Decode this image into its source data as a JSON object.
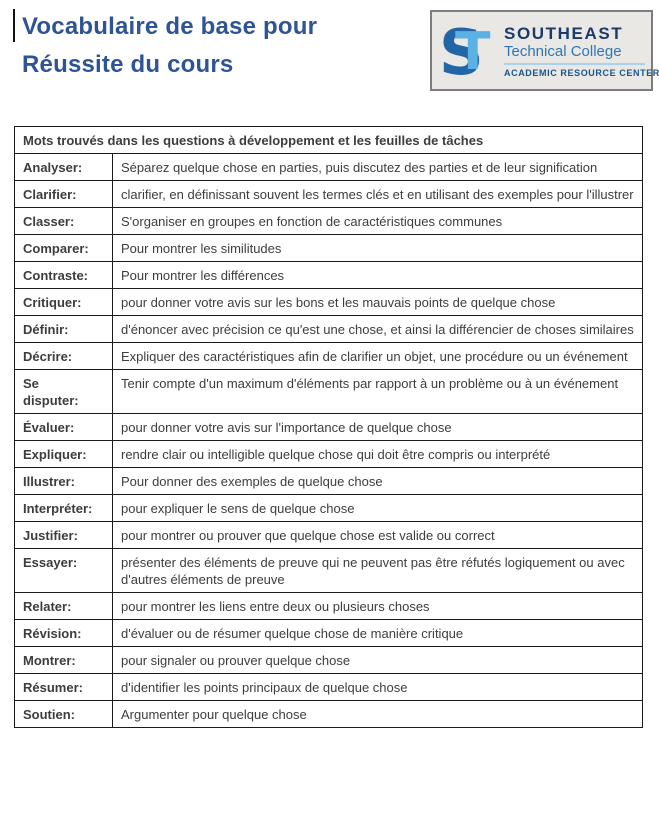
{
  "header": {
    "title_line1": "Vocabulaire de base pour",
    "title_line2": "Réussite du cours"
  },
  "logo": {
    "monogram_s": "S",
    "monogram_t": "T",
    "name_top": "SOUTHEAST",
    "name_bottom": "Technical College",
    "subtitle": "ACADEMIC RESOURCE CENTER"
  },
  "table": {
    "header": "Mots trouvés dans les questions à développement et les feuilles de tâches",
    "rows": [
      {
        "term": "Analyser:",
        "definition": "Séparez quelque chose en parties, puis discutez des parties et de leur signification"
      },
      {
        "term": "Clarifier:",
        "definition": "clarifier, en définissant souvent les termes clés et en utilisant des exemples pour l'illustrer"
      },
      {
        "term": "Classer:",
        "definition": "S'organiser en groupes en fonction de caractéristiques communes"
      },
      {
        "term": "Comparer:",
        "definition": "Pour montrer les similitudes"
      },
      {
        "term": "Contraste:",
        "definition": "Pour montrer les différences"
      },
      {
        "term": "Critiquer:",
        "definition": "pour donner votre avis sur les bons et les mauvais points de quelque chose"
      },
      {
        "term": "Définir:",
        "definition": "d'énoncer avec précision ce qu'est une chose, et ainsi la différencier de choses similaires"
      },
      {
        "term": "Décrire:",
        "definition": "Expliquer des caractéristiques afin de clarifier un objet, une procédure ou un événement"
      },
      {
        "term": "Se\ndisputer:",
        "definition": "Tenir compte d'un maximum d'éléments par rapport à un problème ou à un événement"
      },
      {
        "term": "Évaluer:",
        "definition": "pour donner votre avis sur l'importance de quelque chose"
      },
      {
        "term": "Expliquer:",
        "definition": "rendre clair ou intelligible quelque chose qui doit être compris ou interprété"
      },
      {
        "term": "Illustrer:",
        "definition": "Pour donner des exemples de quelque chose"
      },
      {
        "term": "Interpréter:",
        "definition": "pour expliquer le sens de quelque chose"
      },
      {
        "term": "Justifier:",
        "definition": "pour montrer ou prouver que quelque chose est valide ou correct"
      },
      {
        "term": "Essayer:",
        "definition": "présenter des éléments de preuve qui ne peuvent pas être réfutés logiquement ou avec d'autres éléments de preuve"
      },
      {
        "term": "Relater:",
        "definition": "pour montrer les liens entre deux ou plusieurs choses"
      },
      {
        "term": "Révision:",
        "definition": "d'évaluer ou de résumer quelque chose de manière critique"
      },
      {
        "term": "Montrer:",
        "definition": "pour signaler ou prouver quelque chose"
      },
      {
        "term": "Résumer:",
        "definition": "d'identifier les points principaux de quelque chose"
      },
      {
        "term": "Soutien:",
        "definition": "Argumenter pour quelque chose"
      }
    ]
  },
  "colors": {
    "title_blue": "#2f5496",
    "table_text": "#3d3d3d",
    "table_border": "#1a1a1a",
    "logo_navy": "#1b3a69",
    "logo_medium_blue": "#2f76b5",
    "logo_light_blue": "#5bb1e3",
    "logo_s_blue": "#2266a5",
    "logo_background": "#e9e8e4"
  }
}
